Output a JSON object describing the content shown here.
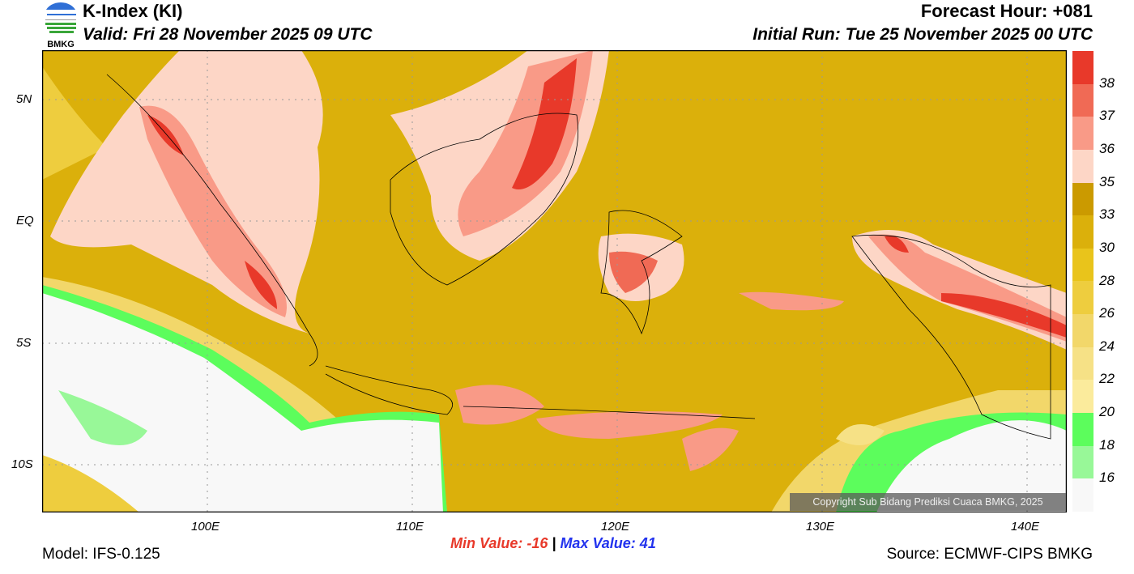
{
  "header": {
    "title": "K-Index (KI)",
    "valid": "Valid: Fri 28 November 2025 09 UTC",
    "forecast_hour": "Forecast Hour: +081",
    "initial_run": "Initial Run: Tue 25 November 2025 00 UTC",
    "logo_text": "BMKG"
  },
  "axes": {
    "lat": [
      "5N",
      "EQ",
      "5S",
      "10S"
    ],
    "lon": [
      "100E",
      "110E",
      "120E",
      "130E",
      "140E"
    ]
  },
  "colorbar": {
    "labels": [
      "38",
      "37",
      "36",
      "35",
      "33",
      "30",
      "28",
      "26",
      "24",
      "22",
      "20",
      "18",
      "16"
    ],
    "colors": [
      "#e8392a",
      "#f06a55",
      "#f99a87",
      "#fdd6c6",
      "#cb9a00",
      "#dbb00b",
      "#e9c41b",
      "#eecd3e",
      "#f2d76a",
      "#f6e186",
      "#fbeb9c",
      "#5cfd5c",
      "#98f898",
      "#f8f8f8"
    ]
  },
  "stats": {
    "min": "Min Value: -16",
    "sep": "|",
    "max": "Max Value:  41"
  },
  "footer": {
    "model": "Model: IFS-0.125",
    "source": "Source: ECMWF-CIPS BMKG",
    "copyright": "Copyright Sub Bidang Prediksi Cuaca BMKG, 2025"
  }
}
